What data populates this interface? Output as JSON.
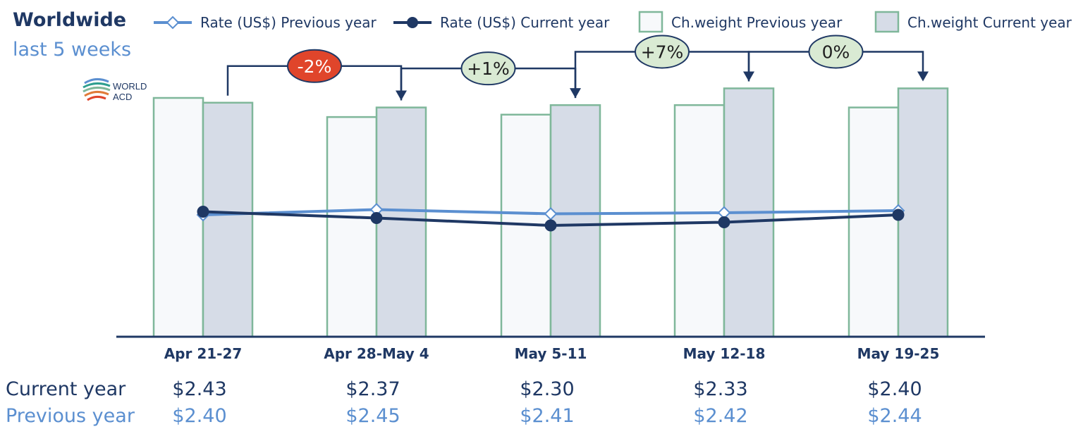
{
  "header": {
    "title": "Worldwide",
    "subtitle": "last 5 weeks"
  },
  "logo": {
    "line1": "WORLD",
    "line2": "ACD"
  },
  "colors": {
    "rate_prev": "#5b8fd0",
    "rate_cur": "#1f3864",
    "bar_prev_fill": "#f7f9fb",
    "bar_cur_fill": "#d6dce7",
    "bar_stroke": "#7fb79a",
    "axis": "#1f3864",
    "badge_negative": "#e0452b",
    "badge_positive": "#d9ead3"
  },
  "chart_data": {
    "type": "bar",
    "categories": [
      "Apr 21-27",
      "Apr 28-May 4",
      "May 5-11",
      "May 12-18",
      "May 19-25"
    ],
    "series": [
      {
        "name": "Ch.weight Previous year",
        "kind": "bar",
        "values": [
          100,
          92,
          93,
          97,
          96
        ]
      },
      {
        "name": "Ch.weight Current year",
        "kind": "bar",
        "values": [
          98,
          96,
          97,
          104,
          104
        ]
      },
      {
        "name": "Rate (US$) Previous year",
        "kind": "line",
        "values": [
          2.4,
          2.45,
          2.41,
          2.42,
          2.44
        ]
      },
      {
        "name": "Rate (US$) Current year",
        "kind": "line",
        "values": [
          2.43,
          2.37,
          2.3,
          2.33,
          2.4
        ]
      }
    ],
    "legend": [
      {
        "label": "Rate (US$) Previous year",
        "symbol": "line-diamond"
      },
      {
        "label": "Rate (US$) Current year",
        "symbol": "line-circle"
      },
      {
        "label": "Ch.weight Previous year",
        "symbol": "box-light"
      },
      {
        "label": "Ch.weight Current year",
        "symbol": "box-dark"
      }
    ],
    "legend_position": "top",
    "week_over_week_changes": [
      {
        "from": 0,
        "to": 1,
        "label": "-2%",
        "sign": "negative"
      },
      {
        "from": 1,
        "to": 2,
        "label": "+1%",
        "sign": "positive"
      },
      {
        "from": 2,
        "to": 3,
        "label": "+7%",
        "sign": "positive"
      },
      {
        "from": 3,
        "to": 4,
        "label": "0%",
        "sign": "neutral"
      }
    ],
    "grid": false
  },
  "table": {
    "current_label": "Current year",
    "previous_label": "Previous year",
    "current_values": [
      "$2.43",
      "$2.37",
      "$2.30",
      "$2.33",
      "$2.40"
    ],
    "previous_values": [
      "$2.40",
      "$2.45",
      "$2.41",
      "$2.42",
      "$2.44"
    ]
  }
}
